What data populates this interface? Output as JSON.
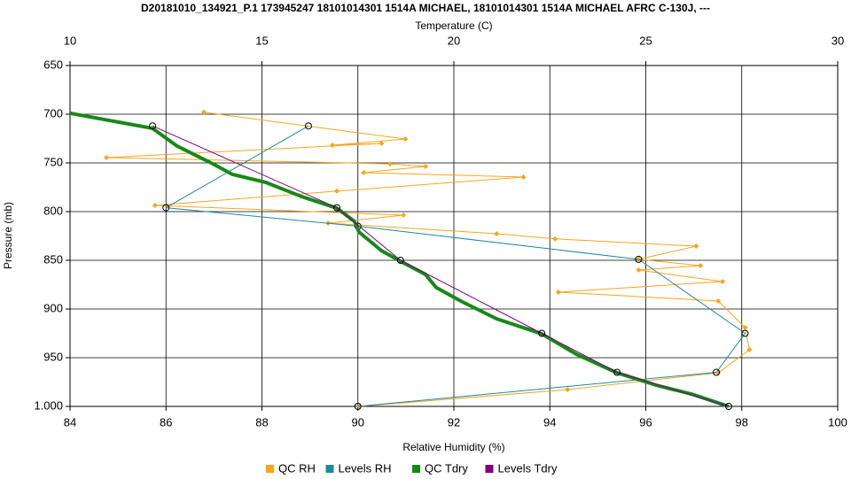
{
  "chart_data": {
    "type": "scatter",
    "title": "D20181010_134921_P.1 173945247 18101014301 1514A MICHAEL, 18101014301 1514A MICHAEL AFRC C-130J, ---",
    "x_label": "Relative Humidity (%)",
    "x2_label": "Temperature (C)",
    "y_label": "Pressure (mb)",
    "xlim": [
      84,
      100
    ],
    "xticks": [
      84,
      86,
      88,
      90,
      92,
      94,
      96,
      98,
      100
    ],
    "x2lim": [
      10,
      30
    ],
    "x2ticks": [
      10,
      15,
      20,
      25,
      30
    ],
    "ylim": [
      650,
      1000
    ],
    "y_inverted": true,
    "yticks": [
      650,
      700,
      750,
      800,
      850,
      900,
      950,
      {
        "value": 1000,
        "label": "1.000"
      }
    ],
    "grid": true,
    "legend": "bottom",
    "series": [
      {
        "name": "QC RH",
        "color": "#f7a51c",
        "marker": "diamond",
        "x": [
          86.79,
          90.99,
          89.47,
          90.49,
          84.76,
          90.67,
          91.41,
          90.12,
          93.45,
          89.56,
          85.77,
          90.95,
          89.38,
          92.89,
          94.11,
          97.05,
          95.85,
          97.14,
          95.85,
          97.6,
          94.18,
          97.51,
          98.07,
          98.16,
          97.51,
          94.37,
          90.03
        ],
        "y": [
          698,
          725.5,
          731.8,
          730,
          744.5,
          751,
          753.6,
          760,
          764.5,
          779,
          793.6,
          803.6,
          811.8,
          822.7,
          828,
          835.5,
          849,
          855.5,
          860,
          871.8,
          882.7,
          891.8,
          919,
          941.8,
          965.5,
          982.7,
          1000
        ]
      },
      {
        "name": "Levels RH",
        "color": "#1d8a9e",
        "marker": "circle",
        "x": [
          88.97,
          86.0,
          90.0,
          95.85,
          98.07,
          97.47,
          90.0
        ],
        "y": [
          712,
          796,
          815,
          849,
          925,
          965,
          1000
        ]
      },
      {
        "name": "QC Tdry",
        "color": "#168a16",
        "marker": "none",
        "axis": "x2",
        "x": [
          10.0,
          12.15,
          12.79,
          13.72,
          14.23,
          15.1,
          16.03,
          16.95,
          17.41,
          17.53,
          18.11,
          18.61,
          19.26,
          19.54,
          20.18,
          21.11,
          22.29,
          23.19,
          24.25,
          25.27,
          26.19,
          27.16
        ],
        "y": [
          699,
          714.5,
          732.7,
          750.9,
          761.8,
          770,
          784.5,
          796.4,
          810,
          821,
          840,
          851,
          864.5,
          878,
          891.8,
          910,
          925.5,
          946.4,
          965.5,
          978.2,
          987.3,
          1000
        ]
      },
      {
        "name": "Levels Tdry",
        "color": "#800080",
        "marker": "circle",
        "axis": "x2",
        "x": [
          12.15,
          16.95,
          18.61,
          22.29,
          24.25,
          27.16
        ],
        "y": [
          712,
          796,
          850,
          925,
          965,
          1000
        ]
      }
    ]
  }
}
